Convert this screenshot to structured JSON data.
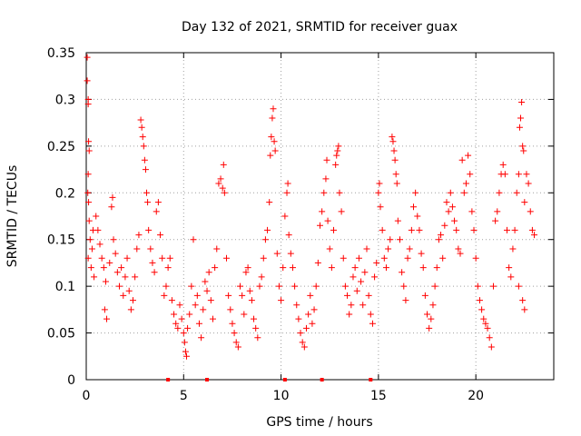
{
  "chart_data": {
    "type": "scatter",
    "title": "Day 132 of 2021, SRMTID for receiver guax",
    "xlabel": "GPS time / hours",
    "ylabel": "SRMTID / TECUs",
    "xlim": [
      0,
      24
    ],
    "ylim": [
      0,
      0.35
    ],
    "x_ticks": [
      0,
      5,
      10,
      15,
      20
    ],
    "x_tick_labels": [
      "0",
      "5",
      "10",
      "15",
      "20"
    ],
    "y_ticks": [
      0,
      0.05,
      0.1,
      0.15,
      0.2,
      0.25,
      0.3,
      0.35
    ],
    "y_tick_labels": [
      "0",
      "0.05",
      "0.1",
      "0.15",
      "0.2",
      "0.25",
      "0.3",
      "0.35"
    ],
    "grid": true,
    "marker": "plus",
    "color": "#ff0000",
    "series": [
      {
        "name": "SRMTID",
        "points": [
          [
            0.05,
            0.345
          ],
          [
            0.05,
            0.32
          ],
          [
            0.1,
            0.3
          ],
          [
            0.1,
            0.295
          ],
          [
            0.12,
            0.255
          ],
          [
            0.15,
            0.245
          ],
          [
            0.1,
            0.22
          ],
          [
            0.08,
            0.2
          ],
          [
            0.12,
            0.19
          ],
          [
            0.15,
            0.17
          ],
          [
            0.2,
            0.15
          ],
          [
            0.1,
            0.13
          ],
          [
            0.25,
            0.12
          ],
          [
            0.3,
            0.14
          ],
          [
            0.35,
            0.16
          ],
          [
            0.4,
            0.11
          ],
          [
            0.5,
            0.175
          ],
          [
            0.6,
            0.16
          ],
          [
            0.7,
            0.145
          ],
          [
            0.8,
            0.13
          ],
          [
            0.9,
            0.12
          ],
          [
            1.0,
            0.105
          ],
          [
            0.95,
            0.075
          ],
          [
            1.05,
            0.065
          ],
          [
            1.2,
            0.125
          ],
          [
            1.3,
            0.185
          ],
          [
            1.35,
            0.195
          ],
          [
            1.4,
            0.15
          ],
          [
            1.5,
            0.135
          ],
          [
            1.6,
            0.115
          ],
          [
            1.7,
            0.1
          ],
          [
            1.8,
            0.12
          ],
          [
            1.9,
            0.09
          ],
          [
            2.0,
            0.11
          ],
          [
            2.1,
            0.13
          ],
          [
            2.2,
            0.095
          ],
          [
            2.3,
            0.075
          ],
          [
            2.4,
            0.085
          ],
          [
            2.5,
            0.11
          ],
          [
            2.6,
            0.14
          ],
          [
            2.7,
            0.155
          ],
          [
            2.8,
            0.278
          ],
          [
            2.85,
            0.27
          ],
          [
            2.9,
            0.26
          ],
          [
            2.95,
            0.25
          ],
          [
            3.0,
            0.235
          ],
          [
            3.05,
            0.225
          ],
          [
            3.1,
            0.2
          ],
          [
            3.15,
            0.19
          ],
          [
            3.2,
            0.16
          ],
          [
            3.3,
            0.14
          ],
          [
            3.4,
            0.125
          ],
          [
            3.5,
            0.115
          ],
          [
            3.6,
            0.18
          ],
          [
            3.7,
            0.19
          ],
          [
            3.8,
            0.155
          ],
          [
            3.9,
            0.13
          ],
          [
            4.0,
            0.09
          ],
          [
            4.1,
            0.1
          ],
          [
            4.2,
            0.12
          ],
          [
            4.3,
            0.13
          ],
          [
            4.4,
            0.085
          ],
          [
            4.5,
            0.07
          ],
          [
            4.6,
            0.06
          ],
          [
            4.7,
            0.055
          ],
          [
            4.8,
            0.08
          ],
          [
            4.9,
            0.065
          ],
          [
            5.0,
            0.05
          ],
          [
            5.05,
            0.04
          ],
          [
            5.1,
            0.03
          ],
          [
            5.15,
            0.025
          ],
          [
            5.2,
            0.055
          ],
          [
            5.3,
            0.07
          ],
          [
            5.4,
            0.1
          ],
          [
            5.5,
            0.15
          ],
          [
            5.6,
            0.08
          ],
          [
            5.7,
            0.09
          ],
          [
            5.8,
            0.06
          ],
          [
            5.9,
            0.045
          ],
          [
            6.0,
            0.075
          ],
          [
            6.1,
            0.105
          ],
          [
            6.2,
            0.095
          ],
          [
            6.3,
            0.115
          ],
          [
            6.4,
            0.085
          ],
          [
            6.5,
            0.065
          ],
          [
            6.6,
            0.12
          ],
          [
            6.7,
            0.14
          ],
          [
            6.8,
            0.21
          ],
          [
            6.9,
            0.215
          ],
          [
            7.0,
            0.205
          ],
          [
            7.05,
            0.23
          ],
          [
            7.1,
            0.2
          ],
          [
            7.2,
            0.13
          ],
          [
            7.3,
            0.09
          ],
          [
            7.4,
            0.075
          ],
          [
            7.5,
            0.06
          ],
          [
            7.6,
            0.05
          ],
          [
            7.7,
            0.04
          ],
          [
            7.8,
            0.035
          ],
          [
            7.9,
            0.1
          ],
          [
            8.0,
            0.09
          ],
          [
            8.1,
            0.07
          ],
          [
            8.2,
            0.115
          ],
          [
            8.3,
            0.12
          ],
          [
            8.4,
            0.095
          ],
          [
            8.5,
            0.085
          ],
          [
            8.6,
            0.065
          ],
          [
            8.7,
            0.055
          ],
          [
            8.8,
            0.045
          ],
          [
            8.9,
            0.1
          ],
          [
            9.0,
            0.11
          ],
          [
            9.1,
            0.13
          ],
          [
            9.2,
            0.15
          ],
          [
            9.3,
            0.16
          ],
          [
            9.4,
            0.19
          ],
          [
            9.45,
            0.24
          ],
          [
            9.5,
            0.26
          ],
          [
            9.55,
            0.28
          ],
          [
            9.6,
            0.29
          ],
          [
            9.65,
            0.255
          ],
          [
            9.7,
            0.245
          ],
          [
            9.8,
            0.135
          ],
          [
            9.9,
            0.1
          ],
          [
            10.0,
            0.085
          ],
          [
            10.1,
            0.12
          ],
          [
            10.2,
            0.175
          ],
          [
            10.3,
            0.2
          ],
          [
            10.35,
            0.21
          ],
          [
            10.4,
            0.155
          ],
          [
            10.5,
            0.135
          ],
          [
            10.6,
            0.12
          ],
          [
            10.7,
            0.1
          ],
          [
            10.8,
            0.08
          ],
          [
            10.9,
            0.065
          ],
          [
            11.0,
            0.05
          ],
          [
            11.1,
            0.04
          ],
          [
            11.2,
            0.035
          ],
          [
            11.3,
            0.055
          ],
          [
            11.4,
            0.07
          ],
          [
            11.5,
            0.09
          ],
          [
            11.6,
            0.06
          ],
          [
            11.7,
            0.075
          ],
          [
            11.8,
            0.1
          ],
          [
            11.9,
            0.125
          ],
          [
            12.0,
            0.165
          ],
          [
            12.1,
            0.18
          ],
          [
            12.2,
            0.2
          ],
          [
            12.3,
            0.215
          ],
          [
            12.35,
            0.235
          ],
          [
            12.4,
            0.17
          ],
          [
            12.5,
            0.14
          ],
          [
            12.6,
            0.12
          ],
          [
            12.7,
            0.16
          ],
          [
            12.8,
            0.23
          ],
          [
            12.85,
            0.24
          ],
          [
            12.9,
            0.245
          ],
          [
            12.95,
            0.25
          ],
          [
            13.0,
            0.2
          ],
          [
            13.1,
            0.18
          ],
          [
            13.2,
            0.13
          ],
          [
            13.3,
            0.1
          ],
          [
            13.4,
            0.09
          ],
          [
            13.5,
            0.07
          ],
          [
            13.6,
            0.08
          ],
          [
            13.7,
            0.11
          ],
          [
            13.8,
            0.12
          ],
          [
            13.9,
            0.095
          ],
          [
            14.0,
            0.13
          ],
          [
            14.1,
            0.105
          ],
          [
            14.2,
            0.08
          ],
          [
            14.3,
            0.115
          ],
          [
            14.4,
            0.14
          ],
          [
            14.5,
            0.09
          ],
          [
            14.6,
            0.07
          ],
          [
            14.7,
            0.06
          ],
          [
            14.8,
            0.11
          ],
          [
            14.9,
            0.125
          ],
          [
            15.0,
            0.2
          ],
          [
            15.05,
            0.21
          ],
          [
            15.1,
            0.185
          ],
          [
            15.2,
            0.16
          ],
          [
            15.3,
            0.13
          ],
          [
            15.4,
            0.12
          ],
          [
            15.5,
            0.14
          ],
          [
            15.6,
            0.15
          ],
          [
            15.7,
            0.26
          ],
          [
            15.75,
            0.255
          ],
          [
            15.8,
            0.245
          ],
          [
            15.85,
            0.235
          ],
          [
            15.9,
            0.22
          ],
          [
            15.95,
            0.21
          ],
          [
            16.0,
            0.17
          ],
          [
            16.1,
            0.15
          ],
          [
            16.2,
            0.115
          ],
          [
            16.3,
            0.1
          ],
          [
            16.4,
            0.085
          ],
          [
            16.5,
            0.13
          ],
          [
            16.6,
            0.14
          ],
          [
            16.7,
            0.16
          ],
          [
            16.8,
            0.185
          ],
          [
            16.9,
            0.2
          ],
          [
            17.0,
            0.175
          ],
          [
            17.1,
            0.16
          ],
          [
            17.2,
            0.135
          ],
          [
            17.3,
            0.12
          ],
          [
            17.4,
            0.09
          ],
          [
            17.5,
            0.07
          ],
          [
            17.6,
            0.055
          ],
          [
            17.7,
            0.065
          ],
          [
            17.8,
            0.08
          ],
          [
            17.9,
            0.1
          ],
          [
            18.0,
            0.12
          ],
          [
            18.1,
            0.15
          ],
          [
            18.2,
            0.155
          ],
          [
            18.3,
            0.13
          ],
          [
            18.4,
            0.165
          ],
          [
            18.5,
            0.19
          ],
          [
            18.6,
            0.18
          ],
          [
            18.7,
            0.2
          ],
          [
            18.8,
            0.185
          ],
          [
            18.9,
            0.17
          ],
          [
            19.0,
            0.16
          ],
          [
            19.1,
            0.14
          ],
          [
            19.2,
            0.135
          ],
          [
            19.3,
            0.235
          ],
          [
            19.4,
            0.2
          ],
          [
            19.5,
            0.21
          ],
          [
            19.6,
            0.24
          ],
          [
            19.7,
            0.22
          ],
          [
            19.8,
            0.18
          ],
          [
            19.9,
            0.16
          ],
          [
            20.0,
            0.13
          ],
          [
            20.1,
            0.1
          ],
          [
            20.2,
            0.085
          ],
          [
            20.3,
            0.075
          ],
          [
            20.4,
            0.065
          ],
          [
            20.5,
            0.06
          ],
          [
            20.6,
            0.055
          ],
          [
            20.7,
            0.045
          ],
          [
            20.8,
            0.035
          ],
          [
            20.9,
            0.1
          ],
          [
            21.0,
            0.17
          ],
          [
            21.1,
            0.18
          ],
          [
            21.2,
            0.2
          ],
          [
            21.3,
            0.22
          ],
          [
            21.4,
            0.23
          ],
          [
            21.5,
            0.22
          ],
          [
            21.6,
            0.16
          ],
          [
            21.7,
            0.12
          ],
          [
            21.8,
            0.11
          ],
          [
            21.9,
            0.14
          ],
          [
            22.0,
            0.16
          ],
          [
            22.1,
            0.2
          ],
          [
            22.2,
            0.22
          ],
          [
            22.25,
            0.27
          ],
          [
            22.3,
            0.28
          ],
          [
            22.35,
            0.297
          ],
          [
            22.4,
            0.25
          ],
          [
            22.45,
            0.245
          ],
          [
            22.5,
            0.19
          ],
          [
            22.6,
            0.22
          ],
          [
            22.7,
            0.21
          ],
          [
            22.8,
            0.18
          ],
          [
            22.9,
            0.16
          ],
          [
            23.0,
            0.155
          ],
          [
            22.5,
            0.075
          ],
          [
            22.4,
            0.085
          ],
          [
            22.2,
            0.1
          ]
        ]
      }
    ],
    "baseline_markers_x": [
      4.2,
      6.2,
      10.2,
      12.1,
      14.6
    ],
    "baseline_markers_y": 0
  }
}
